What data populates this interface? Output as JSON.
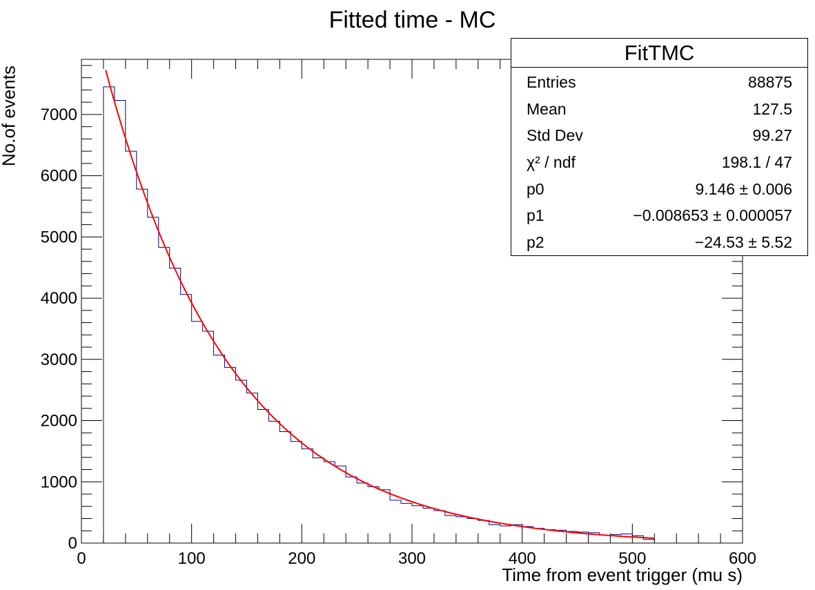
{
  "chart_data": {
    "type": "histogram",
    "title": "Fitted time - MC",
    "xlabel": "Time from event trigger (mu s)",
    "ylabel": "No.of events",
    "xlim": [
      0,
      600
    ],
    "ylim": [
      0,
      7900
    ],
    "xticks": [
      0,
      100,
      200,
      300,
      400,
      500,
      600
    ],
    "yticks": [
      0,
      1000,
      2000,
      3000,
      4000,
      5000,
      6000,
      7000
    ],
    "bin_edges": [
      20,
      30,
      40,
      50,
      60,
      70,
      80,
      90,
      100,
      110,
      120,
      130,
      140,
      150,
      160,
      170,
      180,
      190,
      200,
      210,
      220,
      230,
      240,
      250,
      260,
      270,
      280,
      290,
      300,
      310,
      320,
      330,
      340,
      350,
      360,
      370,
      380,
      390,
      400,
      410,
      420,
      430,
      440,
      450,
      460,
      470,
      480,
      490,
      500,
      510,
      520
    ],
    "counts": [
      7450,
      7230,
      6400,
      5780,
      5320,
      4830,
      4490,
      4060,
      3620,
      3460,
      3070,
      2870,
      2660,
      2450,
      2180,
      1990,
      1820,
      1660,
      1540,
      1390,
      1330,
      1260,
      1080,
      980,
      920,
      870,
      700,
      650,
      610,
      570,
      530,
      450,
      430,
      400,
      370,
      300,
      280,
      300,
      270,
      240,
      220,
      210,
      190,
      180,
      170,
      130,
      140,
      150,
      120,
      60
    ],
    "fit": {
      "name": "expo + constant",
      "color": "#ff0000",
      "x_range": [
        22,
        520
      ],
      "p0": 9.146,
      "p1": -0.008653,
      "p2": -24.53
    },
    "histogram_color": "#000080",
    "grid": false,
    "legend": "top-right"
  },
  "stats": {
    "title": "FitTMC",
    "rows": [
      {
        "label": "Entries",
        "value": "88875"
      },
      {
        "label": "Mean",
        "value": "127.5"
      },
      {
        "label": "Std Dev",
        "value": "99.27"
      },
      {
        "label": "χ² / ndf",
        "value": "198.1 / 47"
      },
      {
        "label": "p0",
        "value": "9.146 ± 0.006"
      },
      {
        "label": "p1",
        "value": "−0.008653 ± 0.000057"
      },
      {
        "label": "p2",
        "value": "−24.53 ± 5.52"
      }
    ]
  }
}
